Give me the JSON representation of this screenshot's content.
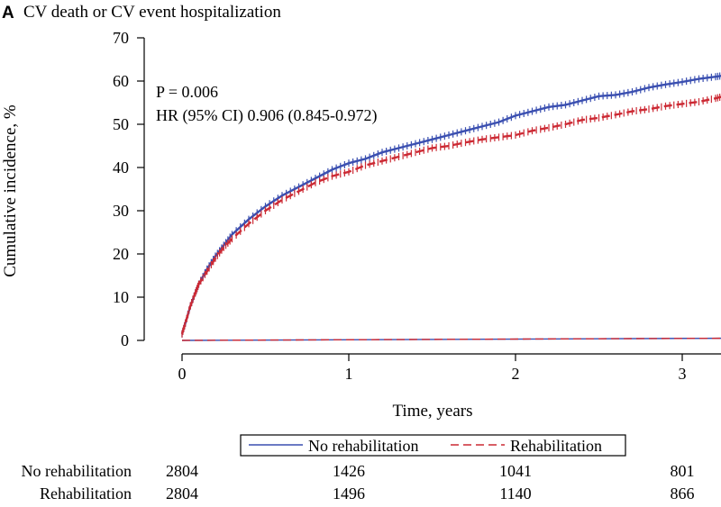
{
  "panel": {
    "letter": "A",
    "title": "CV death or CV event hospitalization"
  },
  "colors": {
    "no_rehab": "#3a4fb0",
    "rehab": "#cc2a34",
    "axis": "#000000",
    "legend_box": "#000000"
  },
  "chart_data": {
    "type": "line",
    "title": "CV death or CV event hospitalization",
    "xlabel": "Time, years",
    "ylabel": "Cumulative incidence, %",
    "xlim": [
      0,
      3.25
    ],
    "ylim": [
      0,
      70
    ],
    "xticks": [
      0,
      1,
      2,
      3
    ],
    "yticks": [
      0,
      10,
      20,
      30,
      40,
      50,
      60,
      70
    ],
    "grid": false,
    "legend_position": "bottom",
    "annotations": [
      "P = 0.006",
      "HR (95% CI) 0.906 (0.845-0.972)"
    ],
    "series": [
      {
        "name": "No rehabilitation",
        "key": "no_rehab",
        "dash": "solid",
        "x": [
          0,
          0.02,
          0.05,
          0.08,
          0.1,
          0.15,
          0.2,
          0.25,
          0.3,
          0.4,
          0.5,
          0.6,
          0.7,
          0.8,
          0.9,
          1.0,
          1.1,
          1.2,
          1.3,
          1.4,
          1.5,
          1.6,
          1.7,
          1.8,
          1.9,
          2.0,
          2.1,
          2.2,
          2.3,
          2.4,
          2.5,
          2.6,
          2.7,
          2.8,
          2.9,
          3.0,
          3.1,
          3.2,
          3.25
        ],
        "y": [
          1.5,
          4,
          8,
          11,
          13,
          16.5,
          19.5,
          22,
          24.5,
          28,
          31,
          33.5,
          35.5,
          37.5,
          39.5,
          41,
          42,
          43.5,
          44.5,
          45.5,
          46.5,
          47.5,
          48.5,
          49.5,
          50.5,
          52,
          53,
          54,
          54.5,
          55.5,
          56.5,
          56.8,
          57.5,
          58.5,
          59.2,
          59.8,
          60.5,
          61,
          61.3
        ],
        "zero_line": [
          0,
          0.5
        ]
      },
      {
        "name": "Rehabilitation",
        "key": "rehab",
        "dash": "dashed",
        "x": [
          0,
          0.02,
          0.05,
          0.08,
          0.1,
          0.15,
          0.2,
          0.25,
          0.3,
          0.4,
          0.5,
          0.6,
          0.7,
          0.8,
          0.9,
          1.0,
          1.1,
          1.2,
          1.3,
          1.4,
          1.5,
          1.6,
          1.7,
          1.8,
          1.9,
          2.0,
          2.1,
          2.2,
          2.3,
          2.4,
          2.5,
          2.6,
          2.7,
          2.8,
          2.9,
          3.0,
          3.1,
          3.2,
          3.25
        ],
        "y": [
          1.5,
          4,
          8,
          11,
          13,
          16,
          19,
          21.5,
          23.5,
          27,
          30,
          32.5,
          34.5,
          36.5,
          38,
          39,
          40.5,
          41.5,
          42.5,
          43.5,
          44.5,
          45,
          45.8,
          46.5,
          47,
          47.5,
          48.5,
          49.2,
          50,
          51,
          51.5,
          52.2,
          53,
          53.5,
          54.2,
          54.7,
          55.2,
          56,
          56.5
        ],
        "zero_line": [
          0,
          0.5
        ]
      }
    ],
    "risk_table": {
      "times": [
        0,
        1,
        2,
        3
      ],
      "rows": [
        {
          "label": "No rehabilitation",
          "values": [
            "2804",
            "1426",
            "1041",
            "801"
          ]
        },
        {
          "label": "Rehabilitation",
          "values": [
            "2804",
            "1496",
            "1140",
            "866"
          ]
        }
      ]
    }
  }
}
